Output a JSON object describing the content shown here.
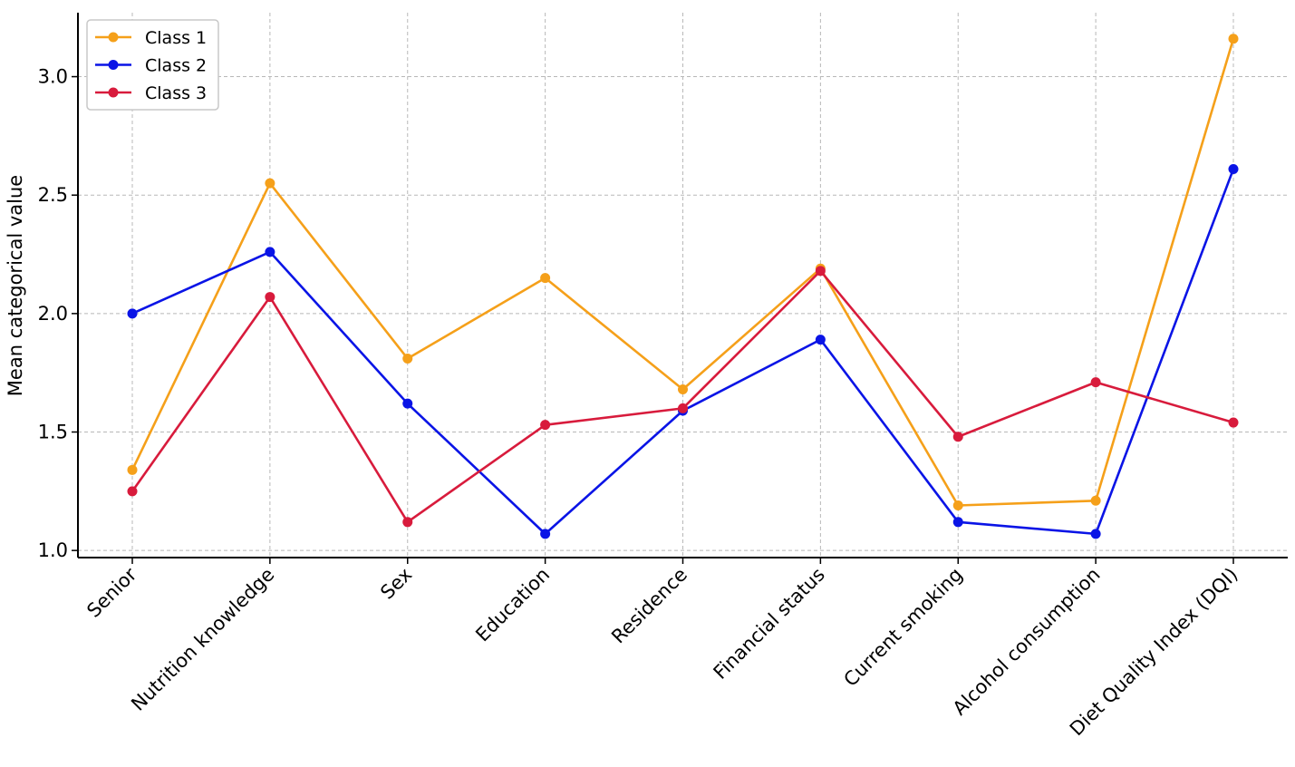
{
  "chart_data": {
    "type": "line",
    "title": "",
    "xlabel": "",
    "ylabel": "Mean categorical value",
    "categories": [
      "Senior",
      "Nutrition knowledge",
      "Sex",
      "Education",
      "Residence",
      "Financial status",
      "Current smoking",
      "Alcohol consumption",
      "Diet Quality Index (DQI)"
    ],
    "ylim": [
      0.97,
      3.27
    ],
    "yticks": [
      "1.0",
      "1.5",
      "2.0",
      "2.5",
      "3.0"
    ],
    "grid": true,
    "legend_position": "top-left",
    "series": [
      {
        "name": "Class 1",
        "color": "#f5a01a",
        "values": [
          1.34,
          2.55,
          1.81,
          2.15,
          1.68,
          2.19,
          1.19,
          1.21,
          3.16
        ]
      },
      {
        "name": "Class 2",
        "color": "#0a14e6",
        "values": [
          2.0,
          2.26,
          1.62,
          1.07,
          1.59,
          1.89,
          1.12,
          1.07,
          2.61
        ]
      },
      {
        "name": "Class 3",
        "color": "#d81b3c",
        "values": [
          1.25,
          2.07,
          1.12,
          1.53,
          1.6,
          2.18,
          1.48,
          1.71,
          1.54
        ]
      }
    ]
  }
}
